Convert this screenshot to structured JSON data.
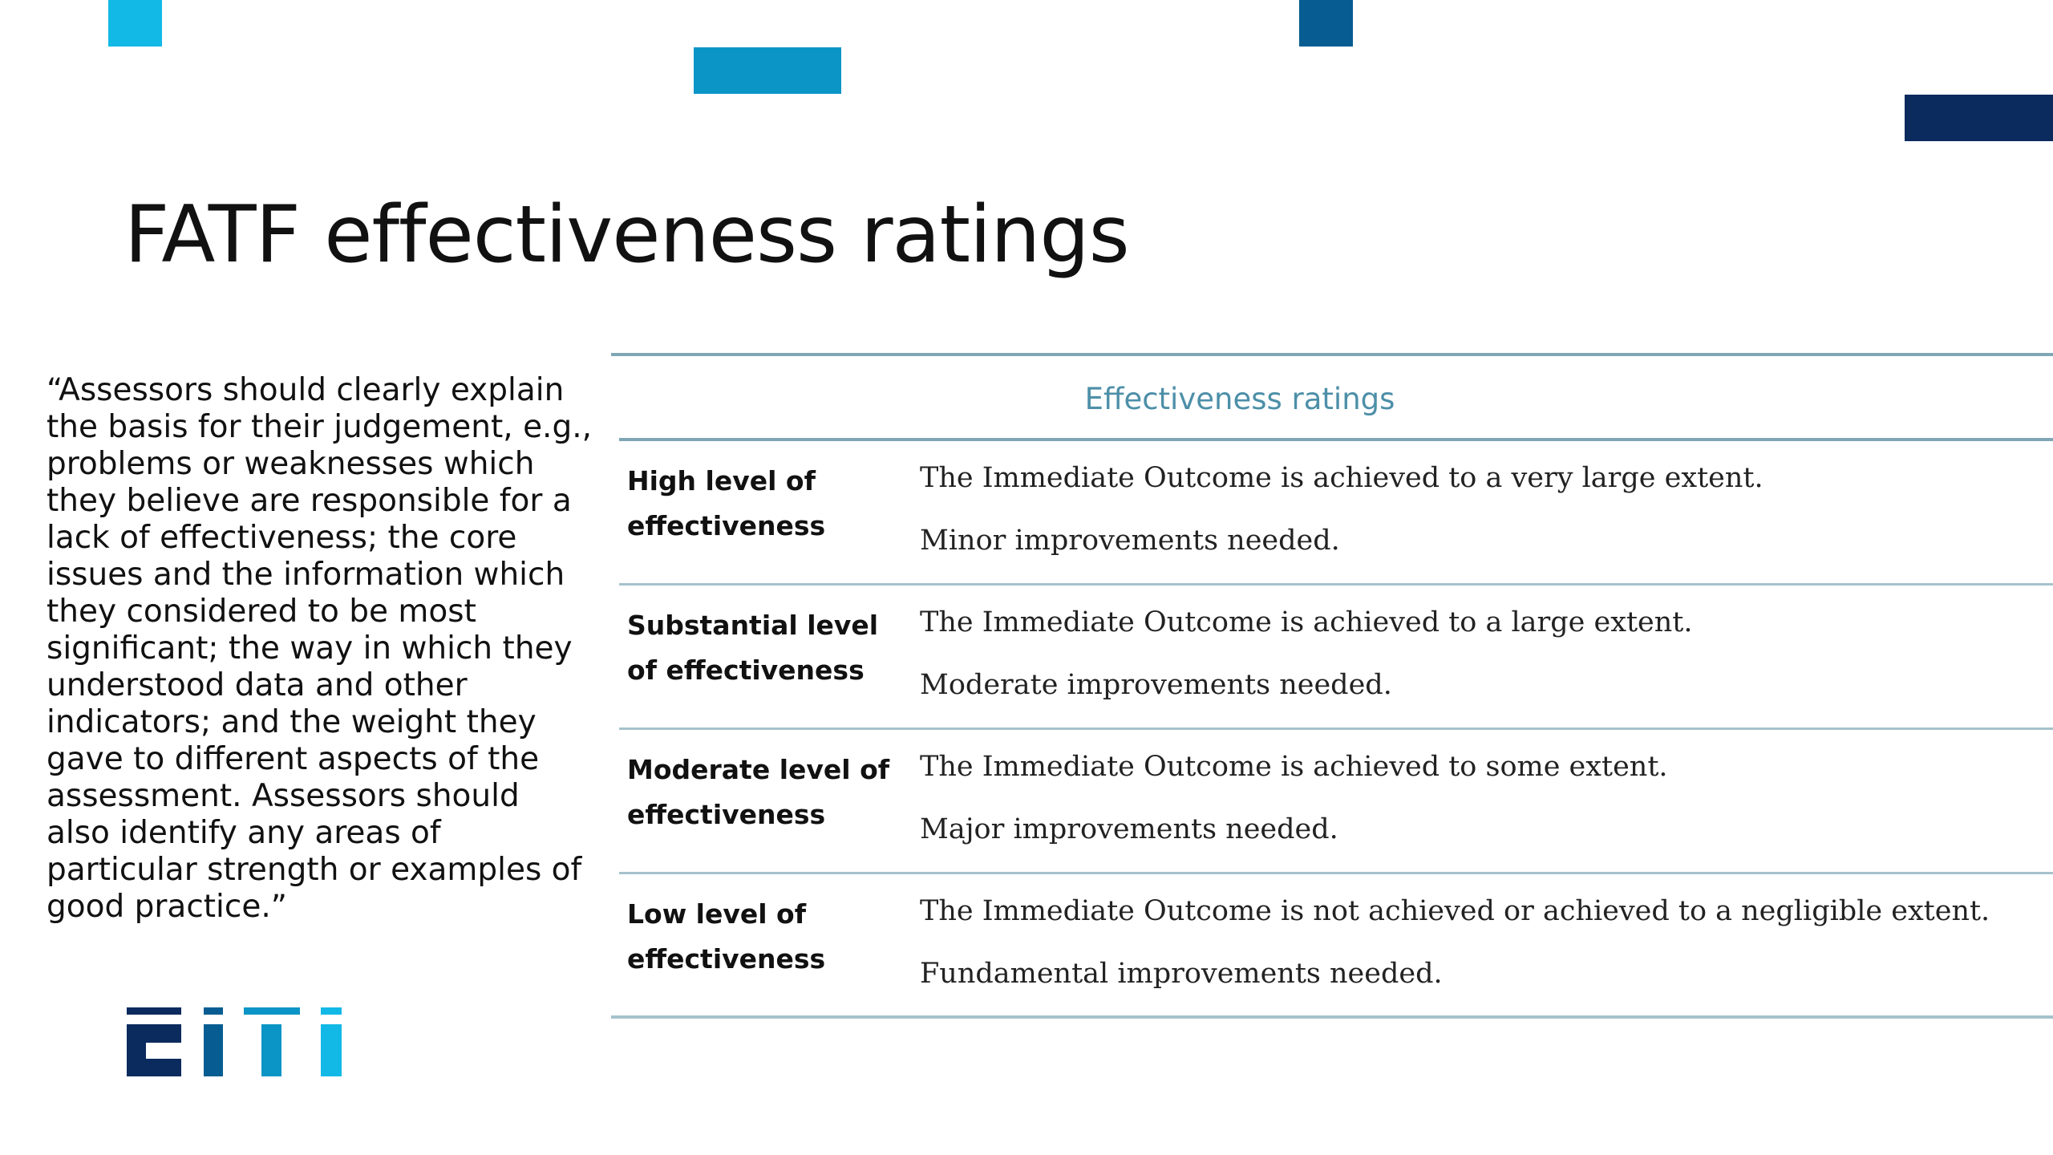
{
  "colors": {
    "cyan": "#13b9e6",
    "teal_blue": "#0b95c6",
    "steel_blue": "#075d92",
    "navy": "#0b2a5e",
    "table_header": "#4d8fa8",
    "rule": "#7fa6b5"
  },
  "slide": {
    "title": "FATF effectiveness ratings",
    "quote": "“Assessors should clearly explain the basis for their judgement, e.g., problems or weaknesses which they believe are responsible for a lack of effectiveness; the core issues and the information which they considered to be most significant; the way in which they understood data and other indicators; and the weight they gave to different aspects of the assessment. Assessors should also identify any areas of particular strength or examples of good practice.”"
  },
  "table": {
    "header": "Effectiveness ratings",
    "rows": [
      {
        "level": "High level of effectiveness",
        "desc1": "The Immediate Outcome is achieved to a very large extent.",
        "desc2": "Minor improvements needed."
      },
      {
        "level": "Substantial level of effectiveness",
        "desc1": "The Immediate Outcome is achieved to a large extent.",
        "desc2": "Moderate improvements needed."
      },
      {
        "level": "Moderate level of effectiveness",
        "desc1": "The Immediate Outcome is achieved to some extent.",
        "desc2": "Major improvements needed."
      },
      {
        "level": "Low level of effectiveness",
        "desc1": "The Immediate Outcome is not achieved or achieved to a negligible extent.",
        "desc2": "Fundamental improvements needed."
      }
    ]
  },
  "logo": {
    "name": "eiti-logo"
  }
}
